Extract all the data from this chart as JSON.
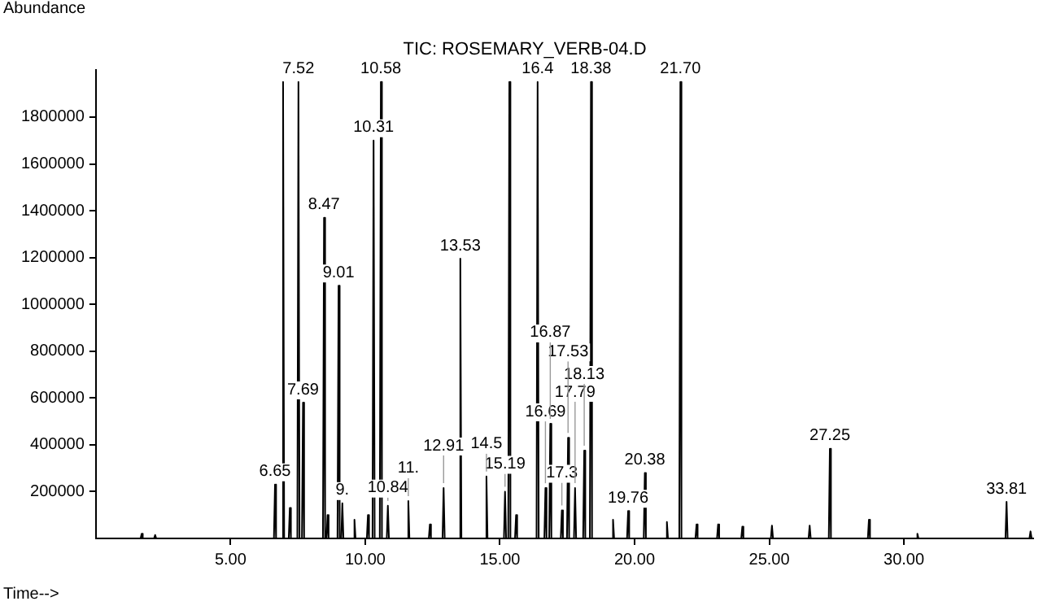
{
  "chart_data": {
    "type": "line",
    "title": "TIC: ROSEMARY_VERB-04.D",
    "xlabel": "Time-->",
    "ylabel": "Abundance",
    "xlim": [
      0,
      34.8
    ],
    "ylim": [
      0,
      2000000
    ],
    "xticks": [
      {
        "value": 5,
        "label": "5.00"
      },
      {
        "value": 10,
        "label": "10.00"
      },
      {
        "value": 15,
        "label": "15.00"
      },
      {
        "value": 20,
        "label": "20.00"
      },
      {
        "value": 25,
        "label": "25.00"
      },
      {
        "value": 30,
        "label": "30.00"
      }
    ],
    "yticks": [
      200000,
      400000,
      600000,
      800000,
      1000000,
      1200000,
      1400000,
      1600000,
      1800000
    ],
    "grid": false,
    "legend": false,
    "marker": "none",
    "line_style": "solid",
    "series": [
      {
        "color": "#000000",
        "x": [
          0,
          1.66,
          1.7,
          1.74,
          2.16,
          2.2,
          2.24,
          6.61,
          6.65,
          6.69,
          6.91,
          6.95,
          6.99,
          7.16,
          7.2,
          7.24,
          7.48,
          7.52,
          7.56,
          7.65,
          7.69,
          7.73,
          8.43,
          8.47,
          8.51,
          8.56,
          8.6,
          8.64,
          8.97,
          9.01,
          9.05,
          9.11,
          9.15,
          9.19,
          9.56,
          9.6,
          9.64,
          10.06,
          10.1,
          10.14,
          10.27,
          10.31,
          10.35,
          10.54,
          10.58,
          10.62,
          10.8,
          10.84,
          10.88,
          11.56,
          11.6,
          11.64,
          12.36,
          12.4,
          12.44,
          12.87,
          12.91,
          12.95,
          13.49,
          13.53,
          13.57,
          14.46,
          14.5,
          14.54,
          15.15,
          15.19,
          15.23,
          15.31,
          15.35,
          15.39,
          15.56,
          15.6,
          15.64,
          16.36,
          16.4,
          16.44,
          16.65,
          16.69,
          16.73,
          16.83,
          16.87,
          16.91,
          17.26,
          17.3,
          17.34,
          17.49,
          17.53,
          17.57,
          17.75,
          17.79,
          17.83,
          18.09,
          18.13,
          18.17,
          18.34,
          18.38,
          18.42,
          19.16,
          19.2,
          19.24,
          19.72,
          19.76,
          19.8,
          20.34,
          20.38,
          20.42,
          21.16,
          21.2,
          21.24,
          21.66,
          21.7,
          21.74,
          22.26,
          22.3,
          22.34,
          23.06,
          23.1,
          23.14,
          23.96,
          24,
          24.04,
          25.06,
          25.1,
          25.14,
          26.46,
          26.5,
          26.54,
          27.21,
          27.25,
          27.29,
          28.66,
          28.7,
          28.74,
          30.46,
          30.5,
          30.54,
          33.77,
          33.81,
          33.85,
          34.66,
          34.7,
          34.74,
          34.8
        ],
        "values": [
          0,
          0,
          20000,
          0,
          0,
          15000,
          0,
          0,
          230000,
          0,
          0,
          1950000,
          0,
          0,
          130000,
          0,
          0,
          1950000,
          0,
          0,
          580000,
          0,
          0,
          1370000,
          0,
          0,
          100000,
          0,
          0,
          1080000,
          0,
          0,
          150000,
          0,
          0,
          80000,
          0,
          0,
          100000,
          0,
          0,
          1700000,
          0,
          0,
          1950000,
          0,
          0,
          140000,
          0,
          0,
          160000,
          0,
          0,
          60000,
          0,
          0,
          215000,
          0,
          0,
          1195000,
          0,
          0,
          265000,
          0,
          0,
          200000,
          0,
          0,
          1950000,
          0,
          0,
          100000,
          0,
          0,
          1950000,
          0,
          0,
          215000,
          0,
          0,
          490000,
          0,
          0,
          120000,
          0,
          0,
          430000,
          0,
          0,
          215000,
          0,
          0,
          375000,
          0,
          0,
          1950000,
          0,
          0,
          80000,
          0,
          0,
          117000,
          0,
          0,
          280000,
          0,
          0,
          70000,
          0,
          0,
          1950000,
          0,
          0,
          60000,
          0,
          0,
          60000,
          0,
          0,
          50000,
          0,
          0,
          55000,
          0,
          0,
          55000,
          0,
          0,
          383000,
          0,
          0,
          80000,
          0,
          0,
          20000,
          0,
          0,
          156000,
          0,
          0,
          30000,
          0,
          0
        ]
      }
    ],
    "annotations": [
      {
        "text": "6.65",
        "x": 6.65,
        "y": 230000
      },
      {
        "text": "7.52",
        "x": 7.52,
        "y": 1950000
      },
      {
        "text": "7.69",
        "x": 7.69,
        "y": 580000
      },
      {
        "text": "8.47",
        "x": 8.47,
        "y": 1370000
      },
      {
        "text": "9.01",
        "x": 9.01,
        "y": 1080000
      },
      {
        "text": "9.",
        "x": 9.15,
        "y": 150000
      },
      {
        "text": "10.31",
        "x": 10.31,
        "y": 1700000
      },
      {
        "text": "10.58",
        "x": 10.58,
        "y": 1950000
      },
      {
        "text": "10.84",
        "x": 10.84,
        "y": 140000
      },
      {
        "text": "11.",
        "x": 11.6,
        "y": 160000
      },
      {
        "text": "12.91",
        "x": 12.91,
        "y": 215000
      },
      {
        "text": "13.53",
        "x": 13.53,
        "y": 1195000
      },
      {
        "text": "14.5",
        "x": 14.5,
        "y": 265000
      },
      {
        "text": "15.19",
        "x": 15.19,
        "y": 200000
      },
      {
        "text": "16.4",
        "x": 16.4,
        "y": 1950000
      },
      {
        "text": "16.69",
        "x": 16.69,
        "y": 215000
      },
      {
        "text": "16.87",
        "x": 16.87,
        "y": 490000
      },
      {
        "text": "17.3",
        "x": 17.3,
        "y": 120000
      },
      {
        "text": "17.53",
        "x": 17.53,
        "y": 430000
      },
      {
        "text": "17.79",
        "x": 17.79,
        "y": 215000
      },
      {
        "text": "18.13",
        "x": 18.13,
        "y": 375000
      },
      {
        "text": "18.38",
        "x": 18.38,
        "y": 1950000
      },
      {
        "text": "19.76",
        "x": 19.76,
        "y": 117000
      },
      {
        "text": "20.38",
        "x": 20.38,
        "y": 280000
      },
      {
        "text": "21.70",
        "x": 21.7,
        "y": 1950000
      },
      {
        "text": "27.25",
        "x": 27.25,
        "y": 383000
      },
      {
        "text": "33.81",
        "x": 33.81,
        "y": 156000
      }
    ]
  }
}
